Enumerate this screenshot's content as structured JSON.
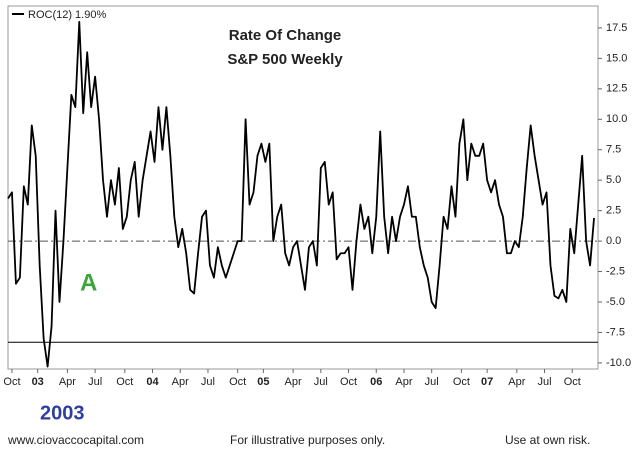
{
  "chart_data": {
    "type": "line",
    "title": "Rate Of Change",
    "subtitle": "S&P 500 Weekly",
    "annotations": [
      "A",
      "2003"
    ],
    "footer": [
      "www.ciovaccocapital.com",
      "For illustrative purposes only.",
      "Use at own risk."
    ],
    "x": [
      0,
      2,
      4,
      6,
      8,
      10,
      12,
      14,
      16,
      18,
      20,
      22,
      24,
      26,
      28,
      30,
      32,
      34,
      36,
      38,
      40,
      42,
      44,
      46,
      48,
      50,
      52,
      54,
      56,
      58,
      60,
      62,
      64,
      66,
      68,
      70,
      72,
      74,
      76,
      78,
      80,
      82,
      84,
      86,
      88,
      90,
      92,
      94,
      96,
      98,
      100,
      102,
      104,
      106,
      108,
      110,
      112,
      114,
      116,
      118,
      120,
      122,
      124,
      126,
      128,
      130,
      132,
      134,
      136,
      138,
      140,
      142,
      144,
      146,
      148,
      150,
      152,
      154,
      156,
      158,
      160,
      162,
      164,
      166,
      168,
      170,
      172,
      174,
      176,
      178,
      180,
      182,
      184,
      186,
      188,
      190,
      192,
      194,
      196,
      198,
      200,
      202,
      204,
      206,
      208,
      210,
      212,
      214,
      216,
      218,
      220,
      222,
      224,
      226,
      228,
      230,
      232,
      234,
      236,
      238,
      240,
      242,
      244,
      246,
      248,
      250,
      252,
      254,
      256,
      258,
      260,
      262,
      264,
      266,
      268,
      270,
      272,
      274,
      276,
      278,
      280,
      282,
      284,
      286,
      288,
      290,
      292,
      294,
      296
    ],
    "series": [
      {
        "name": "ROC(12) 1.90%",
        "color": "#000000",
        "values": [
          3.5,
          4,
          -3.5,
          -3,
          4.5,
          3,
          9.5,
          7,
          -2,
          -8,
          -10.3,
          -7,
          2.5,
          -5,
          0,
          6,
          12,
          11,
          18,
          10.5,
          15.5,
          11,
          13.5,
          10,
          5,
          2,
          5,
          3,
          6,
          1,
          2,
          5,
          6.5,
          2,
          5,
          7,
          9,
          6.5,
          11,
          7.5,
          11,
          7,
          2,
          -0.5,
          1,
          -1,
          -4,
          -4.3,
          -1,
          2,
          2.5,
          -2,
          -3,
          -0.5,
          -2,
          -3,
          -2,
          -1,
          0,
          0,
          10,
          3,
          4,
          7,
          8,
          6.5,
          8,
          0,
          2,
          3,
          -1,
          -2,
          -0.5,
          0,
          -2,
          -4,
          -0.5,
          0,
          -2,
          6,
          6.5,
          3,
          4,
          -1.5,
          -1,
          -1,
          -0.5,
          -4,
          0,
          3,
          1,
          2,
          -1,
          2,
          9,
          2,
          -1,
          2,
          0,
          2,
          3,
          4.5,
          2,
          2,
          -0.5,
          -2,
          -3,
          -5,
          -5.5,
          -2,
          2,
          1,
          4.5,
          2,
          8,
          10,
          5,
          8,
          7,
          7,
          8,
          5,
          4,
          5,
          3,
          2,
          -1,
          -1,
          0,
          -0.5,
          2,
          6,
          9.5,
          7,
          5,
          3,
          4,
          -2,
          -4.5,
          -4.7,
          -4,
          -5,
          1,
          -1,
          3,
          7,
          0,
          -2,
          1.9
        ]
      }
    ],
    "xlim": [
      0,
      298
    ],
    "xticks": [
      {
        "value": 2,
        "label": "Oct"
      },
      {
        "value": 15,
        "label": "03"
      },
      {
        "value": 30,
        "label": "Apr"
      },
      {
        "value": 44,
        "label": "Jul"
      },
      {
        "value": 59,
        "label": "Oct"
      },
      {
        "value": 73,
        "label": "04"
      },
      {
        "value": 87,
        "label": "Apr"
      },
      {
        "value": 101,
        "label": "Jul"
      },
      {
        "value": 116,
        "label": "Oct"
      },
      {
        "value": 129,
        "label": "05"
      },
      {
        "value": 144,
        "label": "Apr"
      },
      {
        "value": 158,
        "label": "Jul"
      },
      {
        "value": 172,
        "label": "Oct"
      },
      {
        "value": 186,
        "label": "06"
      },
      {
        "value": 200,
        "label": "Apr"
      },
      {
        "value": 214,
        "label": "Jul"
      },
      {
        "value": 229,
        "label": "Oct"
      },
      {
        "value": 242,
        "label": "07"
      },
      {
        "value": 257,
        "label": "Apr"
      },
      {
        "value": 271,
        "label": "Jul"
      },
      {
        "value": 285,
        "label": "Oct"
      }
    ],
    "ylim": [
      -10.5,
      19.3
    ],
    "yticks": [
      {
        "value": 17.5,
        "label": "17.5"
      },
      {
        "value": 15,
        "label": "15.0"
      },
      {
        "value": 12.5,
        "label": "12.5"
      },
      {
        "value": 10,
        "label": "10.0"
      },
      {
        "value": 7.5,
        "label": "7.5"
      },
      {
        "value": 5,
        "label": "5.0"
      },
      {
        "value": 2.5,
        "label": "2.5"
      },
      {
        "value": 0,
        "label": "0.0"
      },
      {
        "value": -2.5,
        "label": "-2.5"
      },
      {
        "value": -5,
        "label": "-5.0"
      },
      {
        "value": -7.5,
        "label": "-7.5"
      },
      {
        "value": -10,
        "label": "-10.0"
      }
    ],
    "reference_lines": [
      {
        "value": 0,
        "style": "dashdot"
      },
      {
        "value": -8.3,
        "style": "solid"
      }
    ],
    "grid": false
  }
}
